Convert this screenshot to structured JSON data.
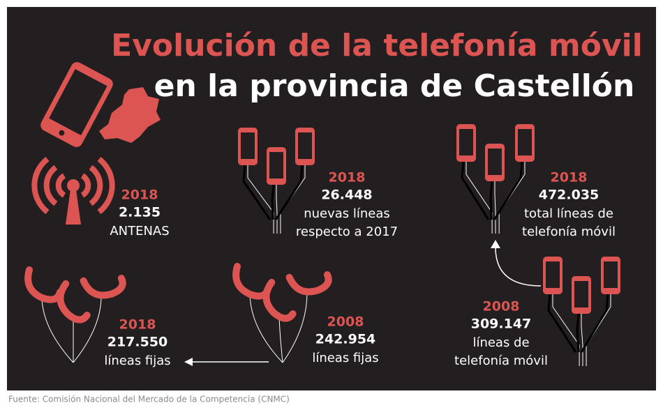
{
  "title": {
    "line1": "Evolución de la telefonía móvil",
    "line2": "en la provincia de Castellón"
  },
  "stats": [
    {
      "year": "2018",
      "value": "2.135",
      "label": [
        "ANTENAS"
      ]
    },
    {
      "year": "2018",
      "value": "26.448",
      "label": [
        "nuevas líneas",
        "respecto a 2017"
      ]
    },
    {
      "year": "2018",
      "value": "472.035",
      "label": [
        "total líneas de",
        "telefonía móvil"
      ]
    },
    {
      "year": "2018",
      "value": "217.550",
      "label": [
        "líneas fijas"
      ]
    },
    {
      "year": "2008",
      "value": "242.954",
      "label": [
        "líneas fijas"
      ]
    },
    {
      "year": "2008",
      "value": "309.147",
      "label": [
        "líneas de",
        "telefonía móvil"
      ]
    }
  ],
  "source": "Fuente: Comisión Nacional del Mercado de la Competencia (CNMC)"
}
